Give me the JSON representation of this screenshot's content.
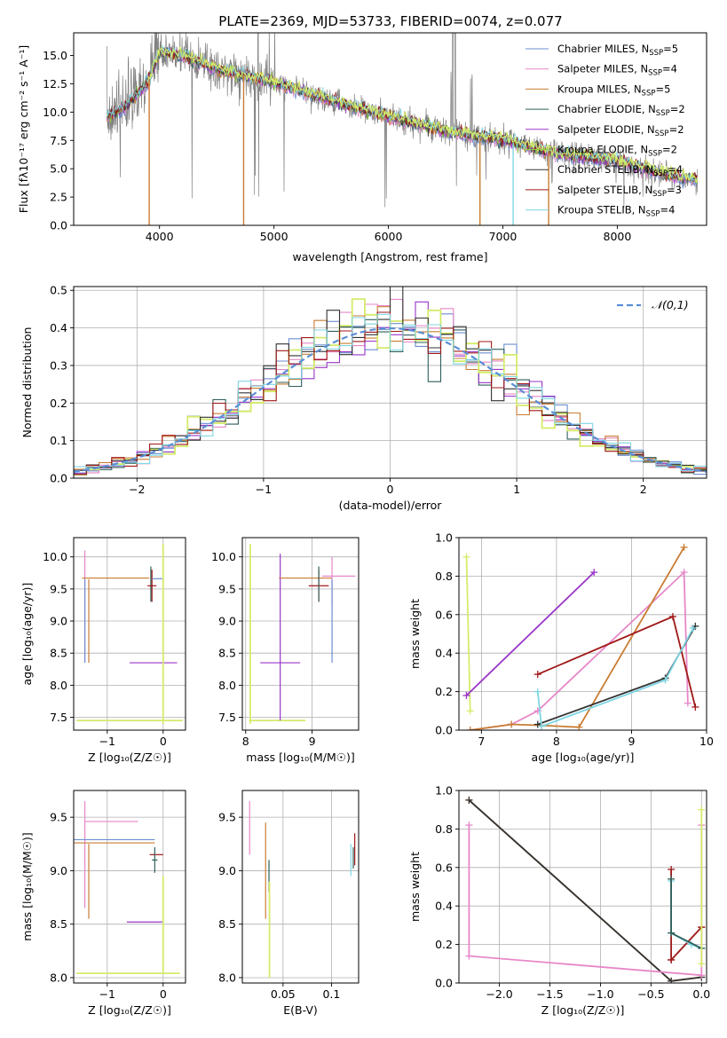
{
  "figure_title": "PLATE=2369, MJD=53733, FIBERID=0074, z=0.077",
  "colors": {
    "Chabrier MILES": "#6c8ed1",
    "Salpeter MILES": "#e787c8",
    "Kroupa MILES": "#c97d33",
    "Chabrier ELODIE": "#2f5f5a",
    "Salpeter ELODIE": "#9a35c9",
    "Kroupa ELODIE": "#8ec63f",
    "Chabrier STELIB": "#333333",
    "Salpeter STELIB": "#a01818",
    "Kroupa STELIB": "#7fd6e4",
    "data": "#808080",
    "gauss": "#5a8ed6",
    "lime": "#d4ec6a"
  },
  "chart_data": [
    {
      "id": "spectrum",
      "type": "line",
      "title": "PLATE=2369, MJD=53733, FIBERID=0074, z=0.077",
      "xlabel": "wavelength [Angstrom, rest frame]",
      "ylabel": "Flux [fλ10⁻¹⁷ erg cm⁻² s⁻¹ A⁻¹]",
      "xlim": [
        3250,
        8780
      ],
      "ylim": [
        0,
        17
      ],
      "xticks": [
        4000,
        5000,
        6000,
        7000,
        8000
      ],
      "yticks": [
        0.0,
        2.5,
        5.0,
        7.5,
        10.0,
        12.5,
        15.0
      ],
      "legend_position": "upper right",
      "continuum": [
        [
          3540,
          9.6
        ],
        [
          3700,
          10.4
        ],
        [
          3900,
          12.6
        ],
        [
          4000,
          15.3
        ],
        [
          4200,
          15.0
        ],
        [
          4500,
          13.8
        ],
        [
          5000,
          12.6
        ],
        [
          5500,
          11.0
        ],
        [
          6000,
          9.6
        ],
        [
          6500,
          8.3
        ],
        [
          7000,
          7.5
        ],
        [
          7500,
          6.3
        ],
        [
          8000,
          5.7
        ],
        [
          8500,
          4.3
        ],
        [
          8700,
          4.0
        ]
      ],
      "emission_lines": [
        3727,
        4861,
        4959,
        5007,
        6548,
        6563,
        6584,
        6717,
        6731
      ],
      "spikes": [
        {
          "x": 3910,
          "series": "Kroupa MILES"
        },
        {
          "x": 4735,
          "series": "Kroupa MILES"
        },
        {
          "x": 6800,
          "series": "Kroupa MILES"
        },
        {
          "x": 7090,
          "series": "Kroupa STELIB"
        },
        {
          "x": 7400,
          "series": "Kroupa MILES"
        }
      ],
      "series": [
        {
          "name": "Chabrier MILES",
          "nssp": "5"
        },
        {
          "name": "Salpeter MILES",
          "nssp": "4"
        },
        {
          "name": "Kroupa MILES",
          "nssp": "5"
        },
        {
          "name": "Chabrier ELODIE",
          "nssp": "2"
        },
        {
          "name": "Salpeter ELODIE",
          "nssp": "2"
        },
        {
          "name": "Kroupa ELODIE",
          "nssp": "2"
        },
        {
          "name": "Chabrier STELIB",
          "nssp": "4"
        },
        {
          "name": "Salpeter STELIB",
          "nssp": "3"
        },
        {
          "name": "Kroupa STELIB",
          "nssp": "4"
        }
      ]
    },
    {
      "id": "residuals",
      "type": "bar",
      "xlabel": "(data-model)/error",
      "ylabel": "Normed distribution",
      "xlim": [
        -2.5,
        2.5
      ],
      "ylim": [
        0,
        0.51
      ],
      "xticks": [
        -2,
        -1,
        0,
        1,
        2
      ],
      "yticks": [
        0.0,
        0.1,
        0.2,
        0.3,
        0.4,
        0.5
      ],
      "bin_width": 0.1,
      "reference_curve": {
        "name": "𝒩(0,1)",
        "mean": 0,
        "sigma": 1
      },
      "histogram_series": [
        "Chabrier MILES",
        "Salpeter MILES",
        "Kroupa MILES",
        "Chabrier ELODIE",
        "Salpeter ELODIE",
        "Kroupa ELODIE",
        "Chabrier STELIB",
        "Salpeter STELIB",
        "Kroupa STELIB"
      ],
      "grid": true
    },
    {
      "id": "age_vs_Z",
      "type": "scatter",
      "xlabel": "Z [log₁₀(Z/Z☉)]",
      "ylabel": "age  [log₁₀(age/yr)]",
      "xlim": [
        -1.6,
        0.4
      ],
      "ylim": [
        7.3,
        10.3
      ],
      "xticks": [
        -1,
        0
      ],
      "yticks": [
        7.5,
        8.0,
        8.5,
        9.0,
        9.5,
        10.0
      ],
      "errorbars": [
        {
          "series": "Salpeter MILES",
          "x": -1.4,
          "y": 9.2,
          "xerr": [
            0,
            0
          ],
          "yerr": [
            0.85,
            0.9
          ]
        },
        {
          "series": "Kroupa MILES",
          "x": -1.33,
          "y": 9.0,
          "xerr": [
            0,
            0
          ],
          "yerr": [
            0.65,
            0.65
          ]
        },
        {
          "series": "Chabrier MILES",
          "x": -1.4,
          "y": 9.0,
          "xerr": [
            0,
            0
          ],
          "yerr": [
            0.65,
            0.65
          ]
        },
        {
          "series": "Kroupa MILES",
          "x": -0.5,
          "y": 9.67,
          "xerr": [
            0.95,
            0.25
          ],
          "yerr": [
            0,
            0
          ]
        },
        {
          "series": "Chabrier ELODIE",
          "x": -0.22,
          "y": 9.6,
          "xerr": [
            0,
            0
          ],
          "yerr": [
            0.3,
            0.25
          ]
        },
        {
          "series": "Salpeter STELIB",
          "x": -0.2,
          "y": 9.55,
          "xerr": [
            0.08,
            0.08
          ],
          "yerr": [
            0.25,
            0.25
          ]
        },
        {
          "series": "Chabrier MILES",
          "x": 0.0,
          "y": 9.66,
          "xerr": [
            0.2,
            0
          ],
          "yerr": [
            0,
            0
          ]
        },
        {
          "series": "Salpeter ELODIE",
          "x": -0.3,
          "y": 8.35,
          "xerr": [
            0.3,
            0.55
          ],
          "yerr": [
            0,
            0
          ]
        },
        {
          "series": "Kroupa ELODIE",
          "x": 0.0,
          "y": 8.8,
          "xerr": [
            0,
            0
          ],
          "yerr": [
            1.4,
            1.4
          ]
        },
        {
          "series": "Kroupa ELODIE",
          "x": -0.6,
          "y": 7.45,
          "xerr": [
            0.95,
            0.95
          ],
          "yerr": [
            0,
            0
          ]
        }
      ],
      "grid": true
    },
    {
      "id": "age_vs_mass",
      "type": "scatter",
      "xlabel": "mass [log₁₀(M/M☉)]",
      "ylabel": "",
      "xlim": [
        7.95,
        9.7
      ],
      "ylim": [
        7.3,
        10.3
      ],
      "xticks": [
        8,
        9
      ],
      "yticks": [
        7.5,
        8.0,
        8.5,
        9.0,
        9.5,
        10.0
      ],
      "errorbars": [
        {
          "series": "Kroupa ELODIE",
          "x": 8.07,
          "y": 8.8,
          "xerr": [
            0,
            0
          ],
          "yerr": [
            1.4,
            1.4
          ]
        },
        {
          "series": "Kroupa ELODIE",
          "x": 8.5,
          "y": 7.45,
          "xerr": [
            0.45,
            0.4
          ],
          "yerr": [
            0,
            0
          ]
        },
        {
          "series": "Salpeter ELODIE",
          "x": 8.52,
          "y": 8.75,
          "xerr": [
            0,
            0
          ],
          "yerr": [
            1.3,
            1.3
          ]
        },
        {
          "series": "Salpeter ELODIE",
          "x": 8.52,
          "y": 8.35,
          "xerr": [
            0.3,
            0.3
          ],
          "yerr": [
            0,
            0
          ]
        },
        {
          "series": "Kroupa MILES",
          "x": 9.0,
          "y": 9.67,
          "xerr": [
            0.5,
            0.3
          ],
          "yerr": [
            0,
            0
          ]
        },
        {
          "series": "Salpeter MILES",
          "x": 9.3,
          "y": 9.65,
          "xerr": [
            0,
            0
          ],
          "yerr": [
            0.4,
            0.35
          ]
        },
        {
          "series": "Chabrier MILES",
          "x": 9.3,
          "y": 9.0,
          "xerr": [
            0,
            0
          ],
          "yerr": [
            0.65,
            0.65
          ]
        },
        {
          "series": "Salpeter STELIB",
          "x": 9.1,
          "y": 9.55,
          "xerr": [
            0.15,
            0.15
          ],
          "yerr": [
            0.25,
            0.25
          ]
        },
        {
          "series": "Chabrier ELODIE",
          "x": 9.1,
          "y": 9.6,
          "xerr": [
            0,
            0
          ],
          "yerr": [
            0.3,
            0.25
          ]
        },
        {
          "series": "Salpeter MILES",
          "x": 9.4,
          "y": 9.7,
          "xerr": [
            0.25,
            0.25
          ],
          "yerr": [
            0,
            0
          ]
        }
      ],
      "grid": true
    },
    {
      "id": "weight_vs_age",
      "type": "line",
      "xlabel": "age  [log₁₀(age/yr)]",
      "ylabel": "mass weight",
      "xlim": [
        6.7,
        10.0
      ],
      "ylim": [
        0,
        1.0
      ],
      "xticks": [
        7,
        8,
        9,
        10
      ],
      "yticks": [
        0.0,
        0.2,
        0.4,
        0.6,
        0.8,
        1.0
      ],
      "series": [
        {
          "name": "Kroupa ELODIE",
          "x": [
            6.8,
            6.85
          ],
          "y": [
            0.9,
            0.1
          ]
        },
        {
          "name": "Salpeter ELODIE",
          "x": [
            6.8,
            8.5
          ],
          "y": [
            0.18,
            0.82
          ]
        },
        {
          "name": "Salpeter MILES",
          "x": [
            6.85,
            7.4,
            7.75,
            9.7,
            9.75
          ],
          "y": [
            0.0,
            0.03,
            0.1,
            0.82,
            0.14
          ]
        },
        {
          "name": "Kroupa MILES",
          "x": [
            6.85,
            7.4,
            7.8,
            8.3,
            9.7
          ],
          "y": [
            0.0,
            0.03,
            0.025,
            0.015,
            0.95
          ]
        },
        {
          "name": "Salpeter STELIB",
          "x": [
            7.75,
            9.55,
            9.85
          ],
          "y": [
            0.29,
            0.59,
            0.12
          ]
        },
        {
          "name": "Chabrier STELIB",
          "x": [
            7.75,
            9.45,
            9.85
          ],
          "y": [
            0.03,
            0.27,
            0.54
          ]
        },
        {
          "name": "Kroupa STELIB",
          "x": [
            7.75,
            7.8,
            9.45,
            9.82
          ],
          "y": [
            0.2,
            0.02,
            0.26,
            0.53
          ]
        }
      ],
      "grid": true
    },
    {
      "id": "mass_vs_Z",
      "type": "scatter",
      "xlabel": "Z [log₁₀(Z/Z☉)]",
      "ylabel": "mass [log₁₀(M/M☉)]",
      "xlim": [
        -1.6,
        0.4
      ],
      "ylim": [
        7.95,
        9.75
      ],
      "xticks": [
        -1,
        0
      ],
      "yticks": [
        8.0,
        8.5,
        9.0,
        9.5
      ],
      "errorbars": [
        {
          "series": "Salpeter MILES",
          "x": -1.4,
          "y": 9.1,
          "xerr": [
            0,
            0
          ],
          "yerr": [
            0.45,
            0.55
          ]
        },
        {
          "series": "Kroupa MILES",
          "x": -1.33,
          "y": 8.9,
          "xerr": [
            0,
            0
          ],
          "yerr": [
            0.35,
            0.35
          ]
        },
        {
          "series": "Chabrier MILES",
          "x": -0.65,
          "y": 9.29,
          "xerr": [
            0.95,
            0.5
          ],
          "yerr": [
            0,
            0
          ]
        },
        {
          "series": "Kroupa MILES",
          "x": -0.65,
          "y": 9.26,
          "xerr": [
            0.95,
            0.5
          ],
          "yerr": [
            0,
            0
          ]
        },
        {
          "series": "Salpeter MILES",
          "x": -0.9,
          "y": 9.46,
          "xerr": [
            0.5,
            0.45
          ],
          "yerr": [
            0,
            0
          ]
        },
        {
          "series": "Salpeter STELIB",
          "x": -0.12,
          "y": 9.15,
          "xerr": [
            0.12,
            0.12
          ],
          "yerr": [
            0,
            0
          ]
        },
        {
          "series": "Chabrier ELODIE",
          "x": -0.15,
          "y": 9.1,
          "xerr": [
            0.05,
            0.05
          ],
          "yerr": [
            0.12,
            0.12
          ]
        },
        {
          "series": "Salpeter ELODIE",
          "x": -0.25,
          "y": 8.52,
          "xerr": [
            0.4,
            0.25
          ],
          "yerr": [
            0,
            0
          ]
        },
        {
          "series": "Kroupa ELODIE",
          "x": 0.0,
          "y": 8.45,
          "xerr": [
            0,
            0
          ],
          "yerr": [
            0.4,
            0.5
          ]
        },
        {
          "series": "Kroupa ELODIE",
          "x": -0.6,
          "y": 8.04,
          "xerr": [
            0.95,
            0.9
          ],
          "yerr": [
            0,
            0
          ]
        }
      ],
      "grid": true
    },
    {
      "id": "mass_vs_ebv",
      "type": "scatter",
      "xlabel": "E(B-V)",
      "ylabel": "",
      "xlim": [
        0.008,
        0.128
      ],
      "ylim": [
        7.95,
        9.75
      ],
      "xticks": [
        0.05,
        0.1
      ],
      "yticks": [
        8.0,
        8.5,
        9.0,
        9.5
      ],
      "errorbars": [
        {
          "series": "Salpeter MILES",
          "x": 0.0155,
          "y": 9.4,
          "xerr": [
            0,
            0
          ],
          "yerr": [
            0.25,
            0.25
          ]
        },
        {
          "series": "Kroupa MILES",
          "x": 0.032,
          "y": 9.0,
          "xerr": [
            0,
            0
          ],
          "yerr": [
            0.45,
            0.45
          ]
        },
        {
          "series": "Chabrier ELODIE",
          "x": 0.0355,
          "y": 8.95,
          "xerr": [
            0,
            0
          ],
          "yerr": [
            0.15,
            0.15
          ]
        },
        {
          "series": "Kroupa ELODIE",
          "x": 0.036,
          "y": 8.4,
          "xerr": [
            0,
            0
          ],
          "yerr": [
            0.4,
            0.5
          ]
        },
        {
          "series": "Kroupa STELIB",
          "x": 0.12,
          "y": 9.1,
          "xerr": [
            0,
            0
          ],
          "yerr": [
            0.15,
            0.15
          ]
        },
        {
          "series": "Salpeter STELIB",
          "x": 0.124,
          "y": 9.2,
          "xerr": [
            0,
            0
          ],
          "yerr": [
            0.15,
            0.15
          ]
        },
        {
          "series": "Chabrier ELODIE",
          "x": 0.1225,
          "y": 9.12,
          "xerr": [
            0,
            0
          ],
          "yerr": [
            0.1,
            0.1
          ]
        }
      ],
      "grid": true
    },
    {
      "id": "weight_vs_Z",
      "type": "line",
      "xlabel": "Z [log₁₀(Z/Z☉)]",
      "ylabel": "mass weight",
      "xlim": [
        -2.4,
        0.05
      ],
      "ylim": [
        0,
        1.0
      ],
      "xticks": [
        -2.0,
        -1.5,
        -1.0,
        -0.5,
        0.0
      ],
      "yticks": [
        0.0,
        0.2,
        0.4,
        0.6,
        0.8,
        1.0
      ],
      "series": [
        {
          "name": "Kroupa MILES",
          "x": [
            -2.3,
            -0.3,
            0.0
          ],
          "y": [
            0.95,
            0.01,
            0.03
          ]
        },
        {
          "name": "Chabrier STELIB",
          "x": [
            -2.3,
            -0.3,
            0.0
          ],
          "y": [
            0.95,
            0.01,
            0.03
          ]
        },
        {
          "name": "Salpeter MILES",
          "x": [
            -2.3,
            -2.3,
            0.0,
            0.0
          ],
          "y": [
            0.82,
            0.14,
            0.04,
            0.82
          ]
        },
        {
          "name": "Salpeter STELIB",
          "x": [
            -0.3,
            -0.3,
            -0.3,
            0.0,
            0.0
          ],
          "y": [
            0.59,
            0.12,
            0.12,
            0.29,
            0.29
          ]
        },
        {
          "name": "Kroupa STELIB",
          "x": [
            -0.3,
            -0.3,
            -0.3,
            -0.1,
            0.0
          ],
          "y": [
            0.53,
            0.26,
            0.26,
            0.2,
            0.18
          ]
        },
        {
          "name": "Chabrier ELODIE",
          "x": [
            -0.3,
            -0.3,
            0.0
          ],
          "y": [
            0.54,
            0.26,
            0.18
          ]
        },
        {
          "name": "Kroupa ELODIE",
          "x": [
            0.0,
            0.0
          ],
          "y": [
            0.9,
            0.1
          ]
        }
      ],
      "grid": true
    }
  ]
}
